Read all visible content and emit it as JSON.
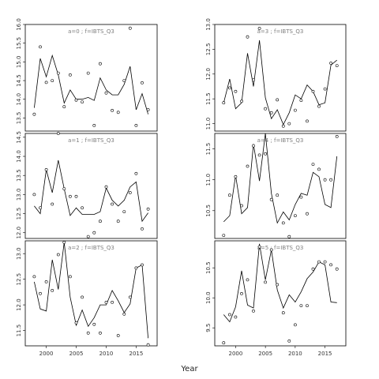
{
  "chart_data": {
    "type": "line",
    "xlabel": "Year",
    "colors": {
      "line": "#000000",
      "frame": "#000000",
      "strip_text": "#7f7f7f"
    },
    "x_ticks": [
      2000,
      2005,
      2010,
      2015
    ],
    "xlim": [
      1996.5,
      2018.5
    ],
    "panels": [
      {
        "strip": "a=0 ; f=IBTS_Q3",
        "ylim": [
          13.15,
          16.0
        ],
        "y_ticks": [
          13.5,
          14.0,
          14.5,
          15.0,
          15.5,
          16.0
        ],
        "y_tick_labels": [
          "13.5",
          "14.0",
          "14.5",
          "15.0",
          "15.5",
          "16.0"
        ],
        "fit_x": [
          1998,
          1999,
          2000,
          2001,
          2002,
          2003,
          2004,
          2005,
          2006,
          2007,
          2008,
          2009,
          2010,
          2011,
          2012,
          2013,
          2014,
          2015,
          2016,
          2017
        ],
        "fit_y": [
          13.77,
          15.09,
          14.6,
          15.17,
          14.65,
          13.9,
          14.25,
          14.0,
          14.0,
          14.05,
          13.97,
          14.57,
          14.25,
          14.12,
          14.12,
          14.4,
          14.88,
          13.72,
          14.15,
          13.6
        ],
        "points_x": [
          1998,
          1999,
          2000,
          2001,
          2002,
          2003,
          2004,
          2005,
          2006,
          2007,
          2008,
          2009,
          2010,
          2011,
          2012,
          2013,
          2014,
          2015,
          2016,
          2017
        ],
        "points_y": [
          13.6,
          15.4,
          14.45,
          14.5,
          14.7,
          13.8,
          14.65,
          13.98,
          13.93,
          14.7,
          13.3,
          14.95,
          14.17,
          13.7,
          13.65,
          14.5,
          15.9,
          13.3,
          14.44,
          13.72
        ]
      },
      {
        "strip": "a=1 ; f=IBTS_Q3",
        "ylim": [
          11.85,
          14.6
        ],
        "y_ticks": [
          12.0,
          12.5,
          13.0,
          13.5,
          14.0,
          14.5
        ],
        "y_tick_labels": [
          "12.0",
          "12.5",
          "13.0",
          "13.5",
          "14.0",
          "14.5"
        ],
        "fit_x": [
          1998,
          1999,
          2000,
          2001,
          2002,
          2003,
          2004,
          2005,
          2006,
          2007,
          2008,
          2009,
          2010,
          2011,
          2012,
          2013,
          2014,
          2015,
          2016,
          2017
        ],
        "fit_y": [
          12.7,
          12.5,
          13.65,
          13.05,
          13.9,
          13.15,
          12.45,
          12.65,
          12.48,
          12.48,
          12.48,
          12.55,
          13.17,
          12.85,
          12.7,
          12.85,
          13.2,
          13.33,
          12.3,
          12.52
        ],
        "points_x": [
          1998,
          1999,
          2000,
          2001,
          2002,
          2003,
          2004,
          2005,
          2006,
          2007,
          2008,
          2009,
          2010,
          2011,
          2012,
          2013,
          2014,
          2015,
          2016,
          2017
        ],
        "points_y": [
          13.0,
          12.65,
          13.65,
          12.75,
          14.6,
          13.15,
          12.95,
          12.95,
          12.65,
          11.9,
          12.0,
          12.3,
          13.2,
          12.75,
          12.3,
          12.55,
          13.05,
          13.55,
          12.1,
          12.62
        ]
      },
      {
        "strip": "a=2 ; f=IBTS_Q3",
        "ylim": [
          11.2,
          13.25
        ],
        "y_ticks": [
          11.5,
          12.0,
          12.5,
          13.0
        ],
        "y_tick_labels": [
          "11.5",
          "12.0",
          "12.5",
          "13.0"
        ],
        "fit_x": [
          1998,
          1999,
          2000,
          2001,
          2002,
          2003,
          2004,
          2005,
          2006,
          2007,
          2008,
          2009,
          2010,
          2011,
          2012,
          2013,
          2014,
          2015,
          2016,
          2017
        ],
        "fit_y": [
          12.45,
          11.92,
          11.88,
          12.88,
          12.3,
          13.22,
          12.15,
          11.6,
          11.9,
          11.58,
          11.75,
          12.0,
          12.0,
          12.28,
          12.08,
          11.85,
          12.02,
          12.72,
          12.78,
          11.35
        ],
        "points_x": [
          1998,
          1999,
          2000,
          2001,
          2002,
          2003,
          2004,
          2005,
          2006,
          2007,
          2008,
          2009,
          2010,
          2011,
          2012,
          2013,
          2014,
          2015,
          2016,
          2017
        ],
        "points_y": [
          12.55,
          12.22,
          12.45,
          12.28,
          12.98,
          13.22,
          12.55,
          11.65,
          12.15,
          11.45,
          11.62,
          11.45,
          12.05,
          12.05,
          11.4,
          11.82,
          12.15,
          12.72,
          12.78,
          11.22
        ]
      },
      {
        "strip": "a=3 ; f=IBTS_Q3",
        "ylim": [
          10.85,
          13.0
        ],
        "y_ticks": [
          11.0,
          11.5,
          12.0,
          12.5,
          13.0
        ],
        "y_tick_labels": [
          "11.0",
          "11.5",
          "12.0",
          "12.5",
          "13.0"
        ],
        "fit_x": [
          1998,
          1999,
          2000,
          2001,
          2002,
          2003,
          2004,
          2005,
          2006,
          2007,
          2008,
          2009,
          2010,
          2011,
          2012,
          2013,
          2014,
          2015,
          2016,
          2017
        ],
        "fit_y": [
          11.42,
          11.9,
          11.3,
          11.42,
          12.42,
          11.75,
          12.68,
          11.52,
          11.1,
          11.28,
          10.98,
          11.22,
          11.58,
          11.5,
          11.78,
          11.65,
          11.38,
          11.42,
          12.18,
          12.28
        ],
        "points_x": [
          1998,
          1999,
          2000,
          2001,
          2002,
          2003,
          2004,
          2005,
          2006,
          2007,
          2008,
          2009,
          2010,
          2011,
          2012,
          2013,
          2014,
          2015,
          2016,
          2017
        ],
        "points_y": [
          11.42,
          11.72,
          11.65,
          11.45,
          12.75,
          11.88,
          12.92,
          11.3,
          11.22,
          11.48,
          10.95,
          11.0,
          11.27,
          11.47,
          11.05,
          11.65,
          11.35,
          11.7,
          12.22,
          12.17
        ]
      },
      {
        "strip": "a=4 ; f=IBTS_Q3",
        "ylim": [
          10.05,
          11.75
        ],
        "y_ticks": [
          10.5,
          11.0,
          11.5
        ],
        "y_tick_labels": [
          "10.5",
          "11.0",
          "11.5"
        ],
        "fit_x": [
          1998,
          1999,
          2000,
          2001,
          2002,
          2003,
          2004,
          2005,
          2006,
          2007,
          2008,
          2009,
          2010,
          2011,
          2012,
          2013,
          2014,
          2015,
          2016,
          2017
        ],
        "fit_y": [
          10.32,
          10.42,
          11.07,
          10.45,
          10.55,
          11.58,
          10.98,
          11.75,
          10.78,
          10.3,
          10.48,
          10.35,
          10.6,
          10.78,
          10.75,
          11.12,
          11.05,
          10.6,
          10.55,
          11.38
        ],
        "points_x": [
          1998,
          1999,
          2000,
          2001,
          2002,
          2003,
          2004,
          2005,
          2006,
          2007,
          2008,
          2009,
          2010,
          2011,
          2012,
          2013,
          2014,
          2015,
          2016,
          2017
        ],
        "points_y": [
          10.1,
          10.75,
          11.05,
          10.58,
          11.22,
          11.55,
          11.4,
          11.42,
          10.68,
          10.75,
          10.3,
          10.08,
          10.42,
          10.72,
          10.45,
          11.25,
          11.17,
          11.0,
          11.0,
          11.7
        ]
      },
      {
        "strip": "a=5 ; f=IBTS_Q3",
        "ylim": [
          9.2,
          10.95
        ],
        "y_ticks": [
          9.5,
          10.0,
          10.5
        ],
        "y_tick_labels": [
          "9.5",
          "10.0",
          "10.5"
        ],
        "fit_x": [
          1998,
          1999,
          2000,
          2001,
          2002,
          2003,
          2004,
          2005,
          2006,
          2007,
          2008,
          2009,
          2010,
          2011,
          2012,
          2013,
          2014,
          2015,
          2016,
          2017
        ],
        "fit_y": [
          9.72,
          9.6,
          9.85,
          10.45,
          9.88,
          9.83,
          10.9,
          10.3,
          10.8,
          10.13,
          9.83,
          10.05,
          9.93,
          10.1,
          10.32,
          10.43,
          10.6,
          10.55,
          9.93,
          9.92
        ],
        "points_x": [
          1998,
          1999,
          2000,
          2001,
          2002,
          2003,
          2004,
          2005,
          2006,
          2007,
          2008,
          2009,
          2010,
          2011,
          2012,
          2013,
          2014,
          2015,
          2016,
          2017
        ],
        "points_y": [
          9.25,
          9.72,
          9.68,
          10.07,
          10.3,
          9.78,
          10.85,
          10.26,
          10.8,
          10.22,
          9.75,
          9.28,
          9.55,
          9.87,
          9.87,
          10.48,
          10.6,
          10.6,
          10.55,
          10.48
        ]
      }
    ]
  }
}
